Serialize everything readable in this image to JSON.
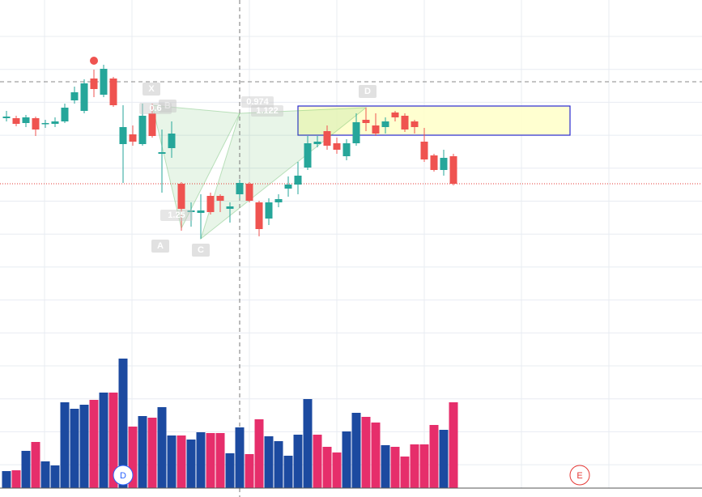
{
  "chart_data": {
    "type": "candlestick",
    "ylim": [
      -214,
      400
    ],
    "open": [
      254,
      254,
      248,
      254,
      247,
      247,
      250,
      276,
      263,
      303,
      283,
      303,
      222,
      234,
      222,
      260,
      210,
      217,
      173,
      138,
      137,
      158,
      158,
      142,
      160,
      173,
      150,
      130,
      150,
      167,
      172,
      193,
      222,
      238,
      223,
      207,
      223,
      252,
      245,
      243,
      261,
      257,
      250,
      225,
      208,
      190,
      207
    ],
    "high": [
      263,
      257,
      258,
      256,
      252,
      255,
      272,
      293,
      302,
      314,
      320,
      305,
      270,
      245,
      272,
      272,
      240,
      250,
      175,
      150,
      160,
      162,
      160,
      150,
      178,
      175,
      152,
      155,
      160,
      182,
      200,
      232,
      232,
      245,
      230,
      228,
      260,
      267,
      260,
      255,
      263,
      260,
      252,
      242,
      210,
      215,
      210
    ],
    "low": [
      250,
      244,
      243,
      232,
      242,
      243,
      248,
      272,
      260,
      280,
      280,
      268,
      174,
      220,
      220,
      230,
      162,
      205,
      115,
      120,
      105,
      135,
      138,
      125,
      155,
      150,
      108,
      122,
      144,
      157,
      160,
      190,
      218,
      215,
      210,
      202,
      220,
      238,
      232,
      235,
      250,
      237,
      235,
      200,
      188,
      183,
      171
    ],
    "close": [
      256,
      247,
      255,
      240,
      248,
      250,
      267,
      286,
      297,
      290,
      315,
      270,
      243,
      225,
      257,
      232,
      212,
      235,
      142,
      140,
      140,
      138,
      152,
      145,
      174,
      152,
      117,
      150,
      154,
      172,
      183,
      223,
      225,
      220,
      215,
      223,
      249,
      248,
      235,
      250,
      255,
      240,
      243,
      203,
      190,
      205,
      173
    ],
    "up_color": "#26a69a",
    "down_color": "#ef5350",
    "vlim": [
      0,
      200
    ],
    "volume": [
      21,
      22,
      46,
      57,
      33,
      28,
      106,
      98,
      103,
      109,
      118,
      118,
      160,
      76,
      89,
      87,
      100,
      65,
      65,
      60,
      69,
      68,
      68,
      43,
      75,
      42,
      85,
      64,
      58,
      40,
      66,
      110,
      66,
      51,
      44,
      70,
      93,
      88,
      81,
      53,
      51,
      39,
      54,
      54,
      78,
      72,
      106
    ],
    "volume_colors": [
      "#1c4aa0",
      "#e62e6b",
      "#1c4aa0",
      "#e62e6b",
      "#1c4aa0",
      "#1c4aa0",
      "#1c4aa0",
      "#1c4aa0",
      "#1c4aa0",
      "#e62e6b",
      "#1c4aa0",
      "#e62e6b",
      "#1c4aa0",
      "#e62e6b",
      "#1c4aa0",
      "#e62e6b",
      "#1c4aa0",
      "#1c4aa0",
      "#e62e6b",
      "#1c4aa0",
      "#1c4aa0",
      "#e62e6b",
      "#e62e6b",
      "#1c4aa0",
      "#1c4aa0",
      "#e62e6b",
      "#e62e6b",
      "#1c4aa0",
      "#1c4aa0",
      "#1c4aa0",
      "#1c4aa0",
      "#1c4aa0",
      "#e62e6b",
      "#e62e6b",
      "#e62e6b",
      "#1c4aa0",
      "#1c4aa0",
      "#e62e6b",
      "#e62e6b",
      "#1c4aa0",
      "#e62e6b",
      "#e62e6b",
      "#e62e6b",
      "#e62e6b",
      "#e62e6b",
      "#1c4aa0",
      "#e62e6b"
    ],
    "hlines": [
      {
        "value": 299,
        "color": "#888888",
        "style": "dashed"
      },
      {
        "value": 173,
        "color": "#e53935",
        "style": "dotted"
      }
    ],
    "crosshair_index": 24,
    "dot": {
      "index": 9,
      "price": 325,
      "color": "#ef5350"
    },
    "box": {
      "from_index": 30,
      "to_index": 58,
      "top": 269,
      "bottom": 233,
      "color": "#2a2ad0",
      "fill": "#ffffc8"
    },
    "pattern_points": [
      {
        "label": "X",
        "index": 15,
        "price": 270
      },
      {
        "label": "A",
        "index": 18,
        "price": 118
      },
      {
        "label": "B",
        "index": 24,
        "price": 260
      },
      {
        "label": "C",
        "index": 20,
        "price": 105
      },
      {
        "label": "D",
        "index": 37,
        "price": 267
      }
    ],
    "ratios": [
      "0.6",
      "0.974",
      "1.122",
      "1.25"
    ],
    "markers": [
      {
        "label": "D",
        "index": 12,
        "color": "#2962ff"
      },
      {
        "label": "E",
        "index": 59,
        "color": "#e53935"
      }
    ]
  }
}
